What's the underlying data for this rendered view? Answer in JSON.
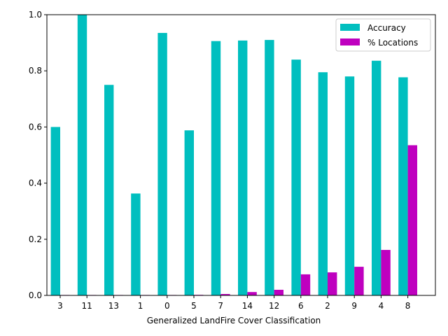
{
  "chart_data": {
    "type": "bar",
    "title": "",
    "xlabel": "Generalized LandFire Cover Classification",
    "ylabel": "",
    "ylim": [
      0,
      1.0
    ],
    "yticks": [
      0.0,
      0.2,
      0.4,
      0.6,
      0.8,
      1.0
    ],
    "ytick_labels": [
      "0.0",
      "0.2",
      "0.4",
      "0.6",
      "0.8",
      "1.0"
    ],
    "categories": [
      "3",
      "11",
      "13",
      "1",
      "0",
      "5",
      "7",
      "14",
      "12",
      "6",
      "2",
      "9",
      "4",
      "8"
    ],
    "series": [
      {
        "name": "Accuracy",
        "color": "#00bfbf",
        "values": [
          0.6,
          1.0,
          0.75,
          0.363,
          0.935,
          0.588,
          0.906,
          0.908,
          0.91,
          0.84,
          0.795,
          0.78,
          0.836,
          0.777
        ]
      },
      {
        "name": "% Locations",
        "color": "#bf00bf",
        "values": [
          0.001,
          0.001,
          0.001,
          0.001,
          0.001,
          0.002,
          0.005,
          0.012,
          0.02,
          0.075,
          0.082,
          0.102,
          0.162,
          0.535
        ]
      }
    ],
    "grid": false,
    "legend_position": "top-right"
  }
}
